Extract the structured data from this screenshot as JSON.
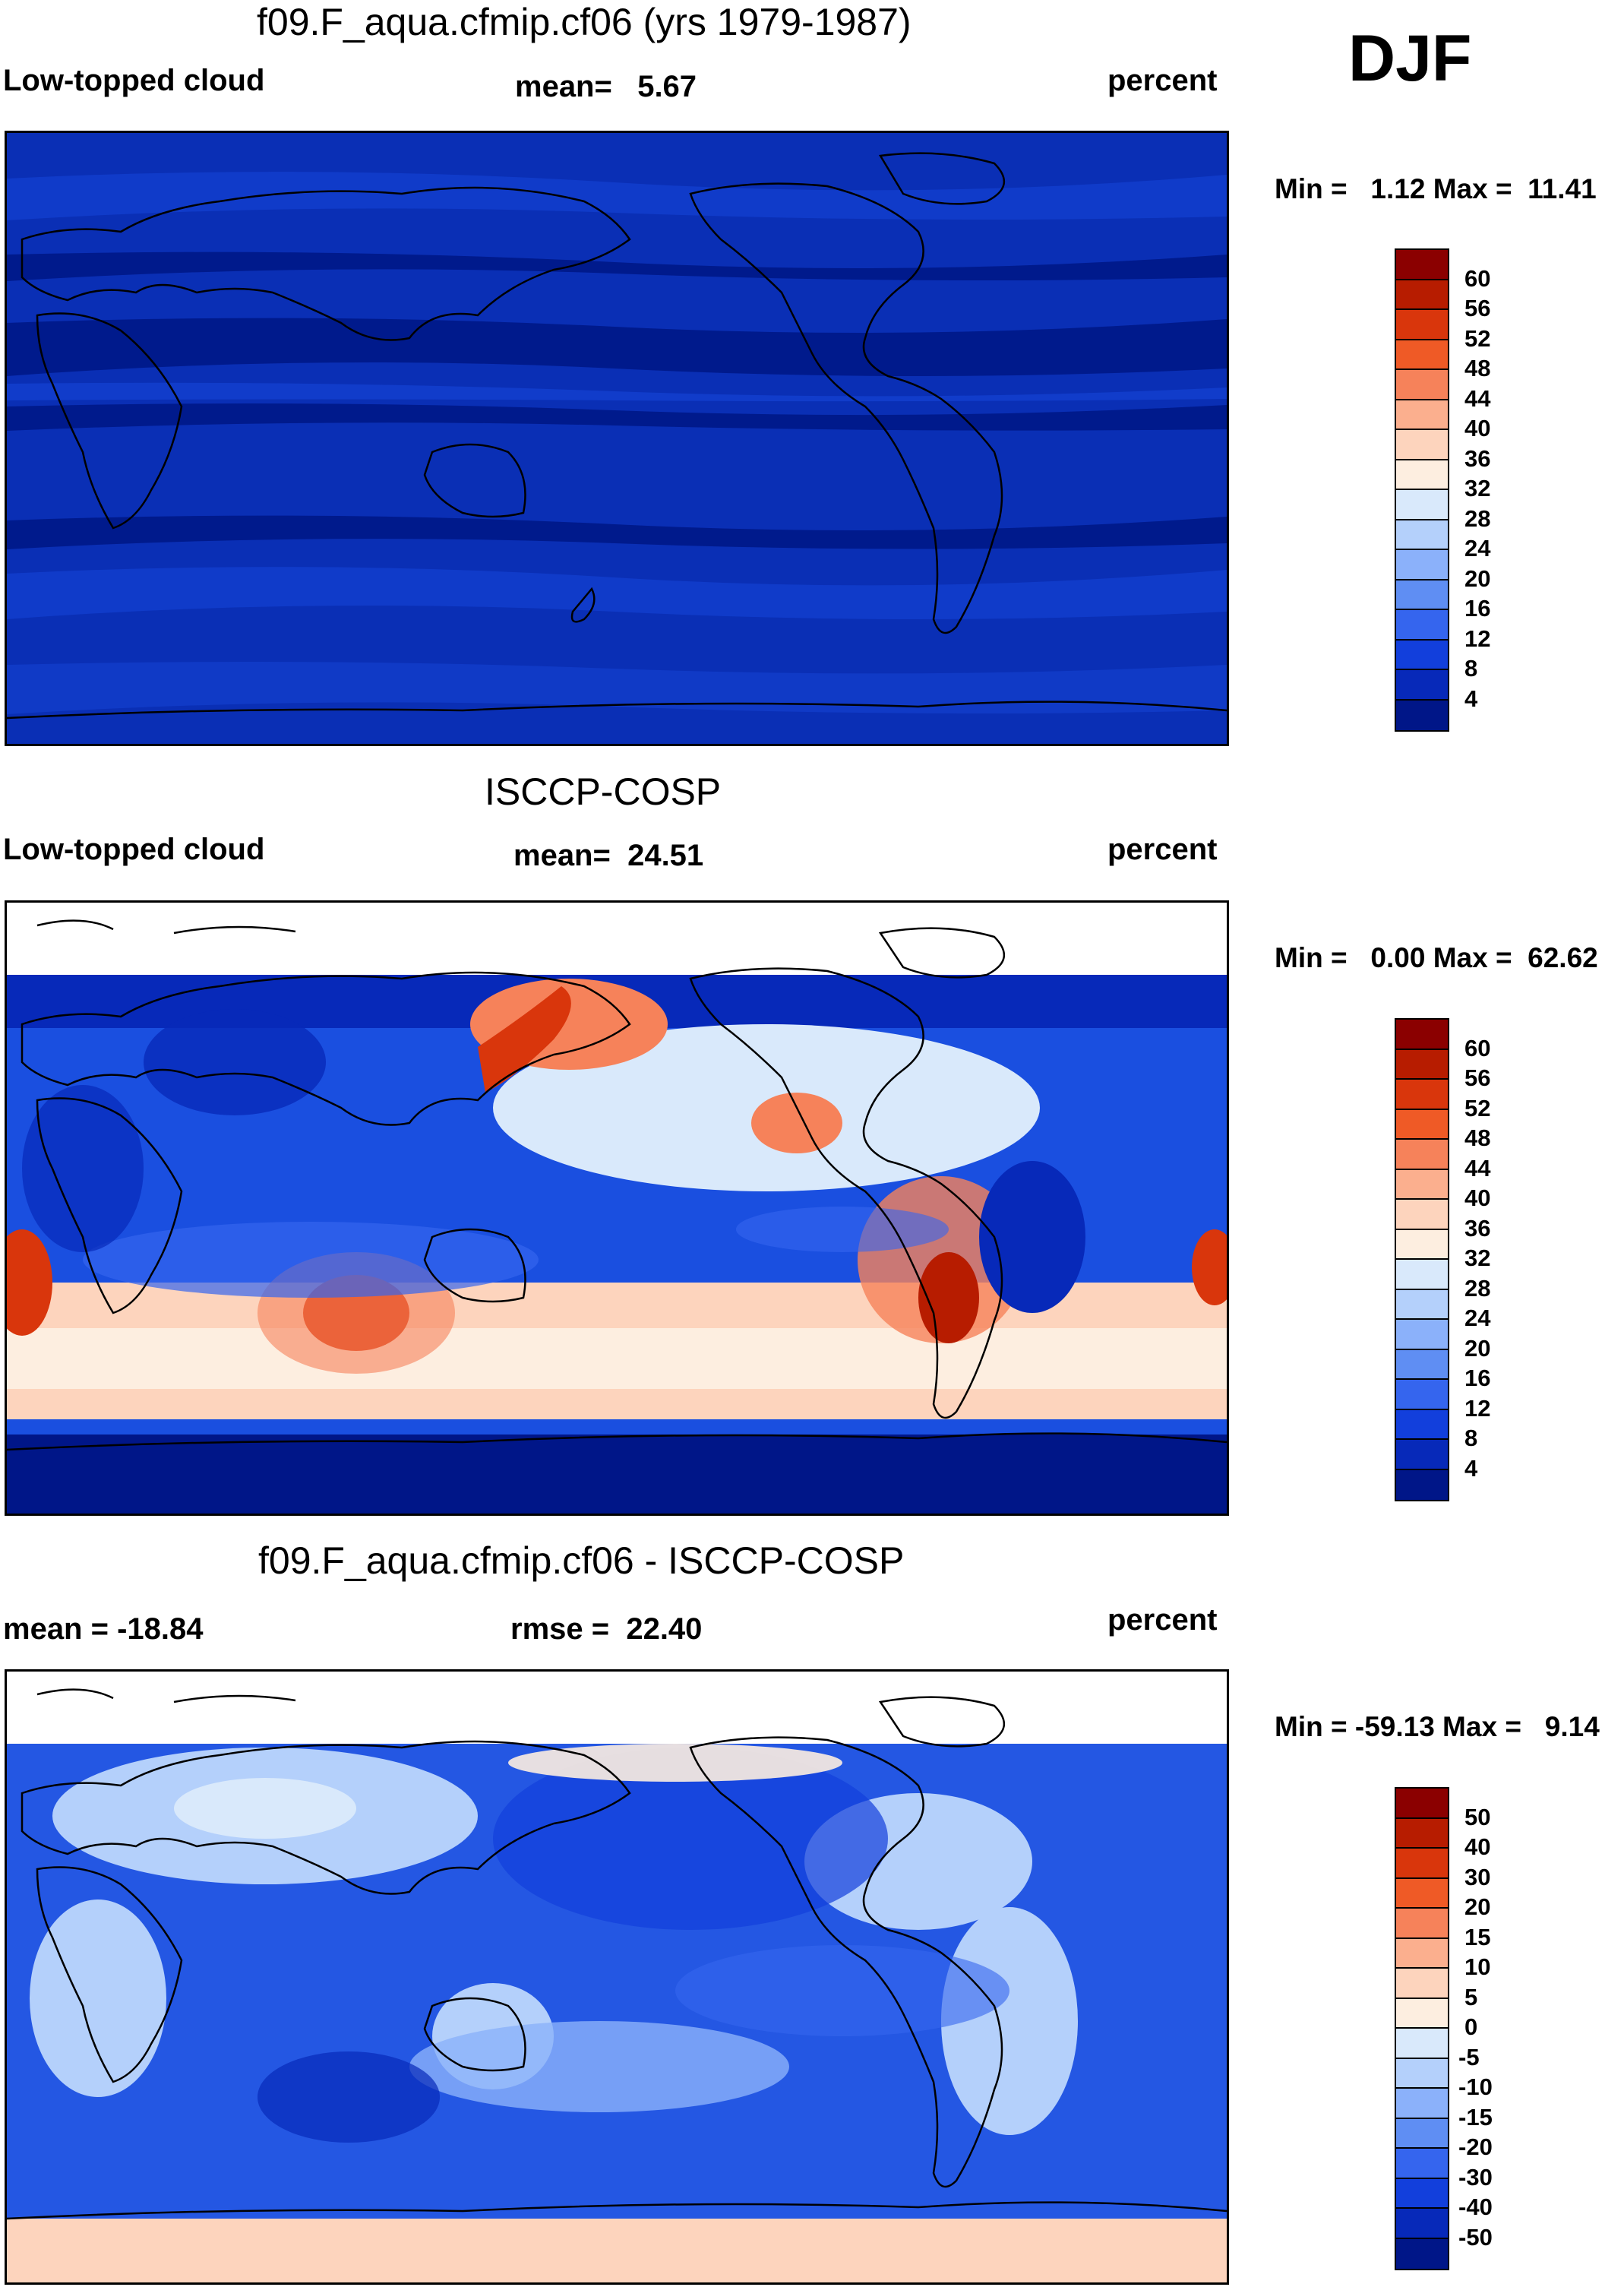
{
  "season": "DJF",
  "panels": [
    {
      "title": "f09.F_aqua.cfmip.cf06 (yrs 1979-1987)",
      "left_label": "Low-topped cloud",
      "center_label": "mean=   5.67",
      "right_label": "percent",
      "minmax": "Min =   1.12 Max =  11.41",
      "colorbar_ticks": [
        "60",
        "56",
        "52",
        "48",
        "44",
        "40",
        "36",
        "32",
        "28",
        "24",
        "20",
        "16",
        "12",
        "8",
        "4"
      ],
      "colorbar_colors": [
        "#8b0000",
        "#b71c00",
        "#d9360c",
        "#ef5a26",
        "#f6825a",
        "#fbaf8e",
        "#fdd4bd",
        "#fdeee0",
        "#d9e9fb",
        "#b4d0fb",
        "#8bb1fa",
        "#5f8ef3",
        "#3565ee",
        "#123fdc",
        "#0729b9",
        "#001688"
      ],
      "map_field": "low cloud model",
      "colors": {
        "base": "#0a2fb5",
        "band_dark": "#001a8c",
        "band_mid": "#0b33c0",
        "band_light": "#1546d8"
      }
    },
    {
      "title": "ISCCP-COSP",
      "left_label": "Low-topped cloud",
      "center_label": "mean=  24.51",
      "right_label": "percent",
      "minmax": "Min =   0.00 Max =  62.62",
      "colorbar_ticks": [
        "60",
        "56",
        "52",
        "48",
        "44",
        "40",
        "36",
        "32",
        "28",
        "24",
        "20",
        "16",
        "12",
        "8",
        "4"
      ],
      "colorbar_colors": [
        "#8b0000",
        "#b71c00",
        "#d9360c",
        "#ef5a26",
        "#f6825a",
        "#fbaf8e",
        "#fdd4bd",
        "#fdeee0",
        "#d9e9fb",
        "#b4d0fb",
        "#8bb1fa",
        "#5f8ef3",
        "#3565ee",
        "#123fdc",
        "#0729b9",
        "#001688"
      ],
      "map_field": "low cloud observed",
      "colors": {
        "missing": "#ffffff",
        "base": "#1a4fe0"
      }
    },
    {
      "title": "f09.F_aqua.cfmip.cf06 - ISCCP-COSP",
      "left_label": "mean = -18.84",
      "center_label": "rmse =  22.40",
      "right_label": "percent",
      "minmax": "Min = -59.13 Max =   9.14",
      "colorbar_ticks": [
        "50",
        "40",
        "30",
        "20",
        "15",
        "10",
        "5",
        "0",
        "-5",
        "-10",
        "-15",
        "-20",
        "-30",
        "-40",
        "-50"
      ],
      "colorbar_colors": [
        "#8b0000",
        "#b71c00",
        "#d9360c",
        "#ef5a26",
        "#f6825a",
        "#fbaf8e",
        "#fdd4bd",
        "#fdeee0",
        "#d9e9fb",
        "#b4d0fb",
        "#8bb1fa",
        "#5f8ef3",
        "#3565ee",
        "#123fdc",
        "#0729b9",
        "#001688"
      ],
      "map_field": "difference",
      "colors": {
        "missing": "#ffffff",
        "base": "#2457e3"
      }
    }
  ]
}
